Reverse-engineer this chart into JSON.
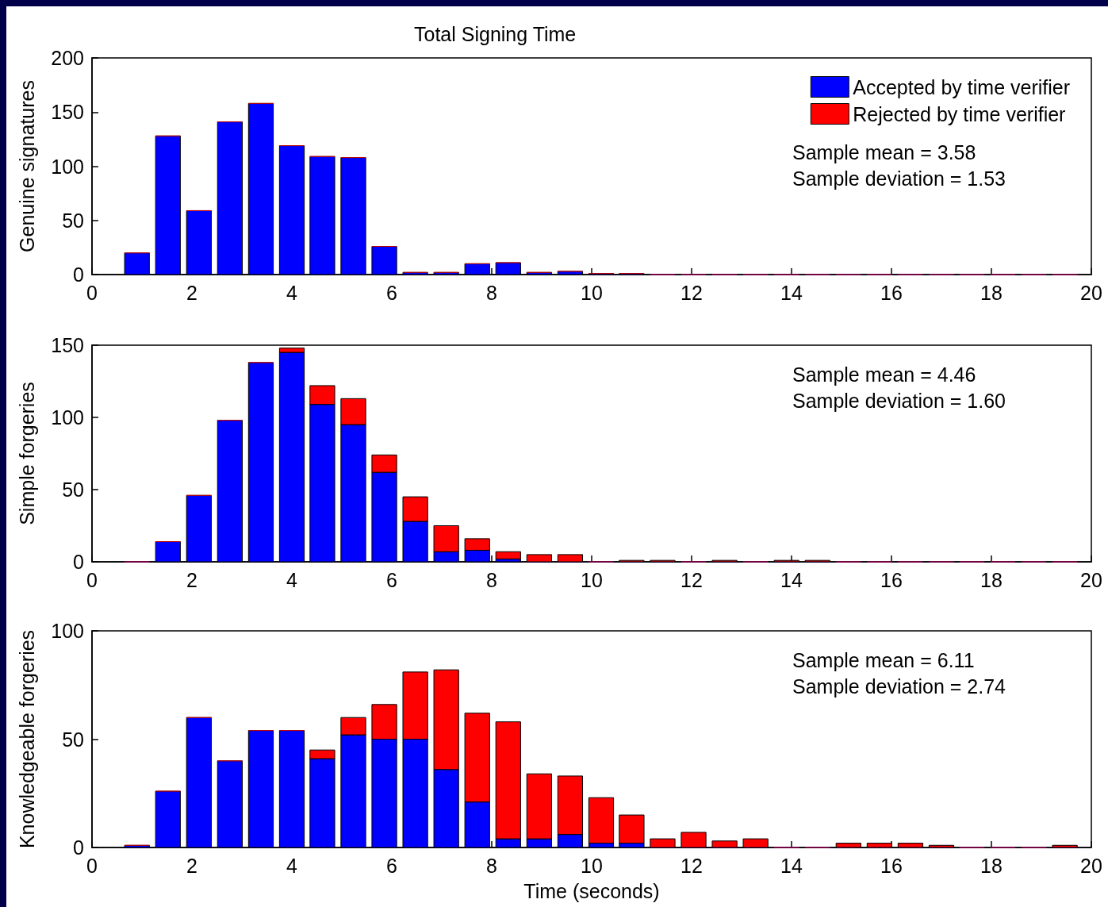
{
  "chart_data": [
    {
      "type": "bar",
      "title": "Total Signing Time",
      "ylabel": "Genuine signatures",
      "stacked": true,
      "legend": "top right",
      "grid": false,
      "x": [
        0.9,
        1.52,
        2.14,
        2.76,
        3.38,
        4.0,
        4.61,
        5.23,
        5.85,
        6.47,
        7.09,
        7.71,
        8.33,
        8.95,
        9.57,
        10.19,
        10.8,
        11.42,
        12.04,
        12.66,
        13.28,
        13.9,
        14.52,
        15.14,
        15.76,
        16.38,
        17.0,
        17.61,
        18.23,
        18.85,
        19.47
      ],
      "series": [
        {
          "name": "Accepted by time verifier",
          "color": "#0000ff",
          "values": [
            20,
            128,
            59,
            141,
            158,
            119,
            109,
            108,
            26,
            2,
            2,
            10,
            11,
            2,
            3,
            1,
            1,
            0,
            0,
            0,
            0,
            0,
            0,
            0,
            0,
            0,
            0,
            0,
            0,
            0,
            0
          ]
        },
        {
          "name": "Rejected by time verifier",
          "color": "#ff0000",
          "values": [
            0,
            0,
            0,
            0,
            0,
            0,
            0,
            0,
            0,
            0,
            0,
            0,
            0,
            0,
            0,
            0,
            0,
            0,
            0,
            0,
            0,
            0,
            0,
            0,
            0,
            0,
            0,
            0,
            0,
            0,
            0
          ]
        }
      ],
      "xlim": [
        0,
        20
      ],
      "xticks": [
        0,
        2,
        4,
        6,
        8,
        10,
        12,
        14,
        16,
        18,
        20
      ],
      "ylim": [
        0,
        200
      ],
      "yticks": [
        0,
        50,
        100,
        150,
        200
      ],
      "annotations": [
        "Sample mean = 3.58",
        "Sample deviation = 1.53"
      ]
    },
    {
      "type": "bar",
      "ylabel": "Simple forgeries",
      "stacked": true,
      "grid": false,
      "x": [
        0.9,
        1.52,
        2.14,
        2.76,
        3.38,
        4.0,
        4.61,
        5.23,
        5.85,
        6.47,
        7.09,
        7.71,
        8.33,
        8.95,
        9.57,
        10.19,
        10.8,
        11.42,
        12.04,
        12.66,
        13.28,
        13.9,
        14.52,
        15.14,
        15.76,
        16.38,
        17.0,
        17.61,
        18.23,
        18.85,
        19.47
      ],
      "series": [
        {
          "color": "#0000ff",
          "values": [
            0,
            14,
            46,
            98,
            138,
            145,
            109,
            95,
            62,
            28,
            7,
            8,
            2,
            0,
            0,
            0,
            0,
            0,
            0,
            0,
            0,
            0,
            0,
            0,
            0,
            0,
            0,
            0,
            0,
            0,
            0
          ]
        },
        {
          "color": "#ff0000",
          "values": [
            0,
            0,
            0,
            0,
            0,
            3,
            13,
            18,
            12,
            17,
            18,
            8,
            5,
            5,
            5,
            0,
            1,
            1,
            0,
            1,
            0,
            1,
            1,
            0,
            0,
            0,
            0,
            0,
            0,
            0,
            0
          ]
        }
      ],
      "xlim": [
        0,
        20
      ],
      "xticks": [
        0,
        2,
        4,
        6,
        8,
        10,
        12,
        14,
        16,
        18,
        20
      ],
      "ylim": [
        0,
        150
      ],
      "yticks": [
        0,
        50,
        100,
        150
      ],
      "annotations": [
        "Sample mean = 4.46",
        "Sample deviation = 1.60"
      ]
    },
    {
      "type": "bar",
      "ylabel": "Knowledgeable forgeries",
      "xlabel": "Time (seconds)",
      "stacked": true,
      "grid": false,
      "x": [
        0.9,
        1.52,
        2.14,
        2.76,
        3.38,
        4.0,
        4.61,
        5.23,
        5.85,
        6.47,
        7.09,
        7.71,
        8.33,
        8.95,
        9.57,
        10.19,
        10.8,
        11.42,
        12.04,
        12.66,
        13.28,
        13.9,
        14.52,
        15.14,
        15.76,
        16.38,
        17.0,
        17.61,
        18.23,
        18.85,
        19.47
      ],
      "series": [
        {
          "color": "#0000ff",
          "values": [
            1,
            26,
            60,
            40,
            54,
            54,
            41,
            52,
            50,
            50,
            36,
            21,
            4,
            4,
            6,
            2,
            2,
            0,
            0,
            0,
            0,
            0,
            0,
            0,
            0,
            0,
            0,
            0,
            0,
            0,
            0
          ]
        },
        {
          "color": "#ff0000",
          "values": [
            0,
            0,
            0,
            0,
            0,
            0,
            4,
            8,
            16,
            31,
            46,
            41,
            54,
            30,
            27,
            21,
            13,
            4,
            7,
            3,
            4,
            0,
            0,
            2,
            2,
            2,
            1,
            0,
            0,
            0,
            1
          ]
        }
      ],
      "xlim": [
        0,
        20
      ],
      "xticks": [
        0,
        2,
        4,
        6,
        8,
        10,
        12,
        14,
        16,
        18,
        20
      ],
      "ylim": [
        0,
        100
      ],
      "yticks": [
        0,
        50,
        100
      ],
      "annotations": [
        "Sample mean = 6.11",
        "Sample deviation = 2.74"
      ]
    }
  ]
}
